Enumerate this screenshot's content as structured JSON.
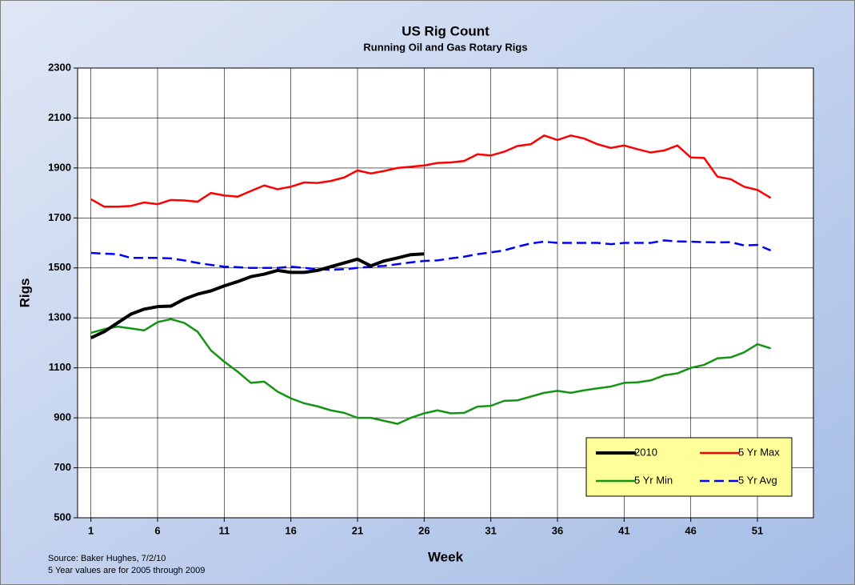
{
  "chart_data": {
    "type": "line",
    "title": "US Rig Count",
    "subtitle": "Running Oil and Gas Rotary Rigs",
    "x_label": "Week",
    "y_label": "Rigs",
    "annotations": [
      "Source:  Baker Hughes, 7/2/10",
      "5 Year values are for 2005 through 2009"
    ],
    "x": [
      1,
      2,
      3,
      4,
      5,
      6,
      7,
      8,
      9,
      10,
      11,
      12,
      13,
      14,
      15,
      16,
      17,
      18,
      19,
      20,
      21,
      22,
      23,
      24,
      25,
      26,
      27,
      28,
      29,
      30,
      31,
      32,
      33,
      34,
      35,
      36,
      37,
      38,
      39,
      40,
      41,
      42,
      43,
      44,
      45,
      46,
      47,
      48,
      49,
      50,
      51,
      52
    ],
    "series": [
      {
        "name": "2010",
        "color": "#000000",
        "width": 4,
        "dash": false,
        "values": [
          1220,
          1245,
          1280,
          1315,
          1335,
          1345,
          1347,
          1375,
          1395,
          1408,
          1428,
          1445,
          1465,
          1475,
          1490,
          1482,
          1482,
          1490,
          1505,
          1520,
          1535,
          1508,
          1528,
          1540,
          1553,
          1556,
          null,
          null,
          null,
          null,
          null,
          null,
          null,
          null,
          null,
          null,
          null,
          null,
          null,
          null,
          null,
          null,
          null,
          null,
          null,
          null,
          null,
          null,
          null,
          null,
          null,
          null
        ]
      },
      {
        "name": "5 Yr Max",
        "color": "#ff0000",
        "width": 2.5,
        "dash": false,
        "values": [
          1775,
          1745,
          1745,
          1748,
          1762,
          1755,
          1772,
          1770,
          1765,
          1800,
          1790,
          1785,
          1808,
          1830,
          1815,
          1825,
          1842,
          1840,
          1848,
          1862,
          1890,
          1878,
          1888,
          1900,
          1905,
          1910,
          1920,
          1922,
          1928,
          1955,
          1950,
          1965,
          1988,
          1995,
          2030,
          2012,
          2030,
          2018,
          1995,
          1980,
          1990,
          1975,
          1962,
          1970,
          1990,
          1942,
          1940,
          1865,
          1855,
          1825,
          1812,
          1780
        ]
      },
      {
        "name": "5 Yr Min",
        "color": "#149414",
        "width": 2.5,
        "dash": false,
        "values": [
          1240,
          1255,
          1265,
          1258,
          1250,
          1283,
          1295,
          1280,
          1245,
          1170,
          1125,
          1085,
          1040,
          1045,
          1005,
          978,
          958,
          946,
          930,
          920,
          900,
          900,
          888,
          876,
          900,
          918,
          930,
          918,
          920,
          945,
          948,
          968,
          970,
          985,
          1000,
          1008,
          1000,
          1010,
          1018,
          1025,
          1040,
          1042,
          1050,
          1070,
          1078,
          1100,
          1112,
          1138,
          1142,
          1162,
          1195,
          1178
        ]
      },
      {
        "name": "5 Yr Avg",
        "color": "#0000ff",
        "width": 2.5,
        "dash": true,
        "values": [
          1560,
          1557,
          1555,
          1540,
          1540,
          1540,
          1538,
          1530,
          1520,
          1512,
          1505,
          1503,
          1500,
          1500,
          1500,
          1505,
          1500,
          1495,
          1492,
          1495,
          1500,
          1505,
          1508,
          1515,
          1522,
          1528,
          1530,
          1538,
          1545,
          1555,
          1562,
          1570,
          1585,
          1598,
          1605,
          1600,
          1600,
          1600,
          1600,
          1595,
          1600,
          1600,
          1600,
          1610,
          1606,
          1605,
          1603,
          1602,
          1603,
          1590,
          1592,
          1570
        ]
      }
    ],
    "xlim": [
      0,
      55.2
    ],
    "xticks": [
      1,
      6,
      11,
      16,
      21,
      26,
      31,
      36,
      41,
      46,
      51
    ],
    "ylim": [
      500,
      2300
    ],
    "yticks": [
      500,
      700,
      900,
      1100,
      1300,
      1500,
      1700,
      1900,
      2100,
      2300
    ],
    "grid": true,
    "legend": "lower right"
  }
}
